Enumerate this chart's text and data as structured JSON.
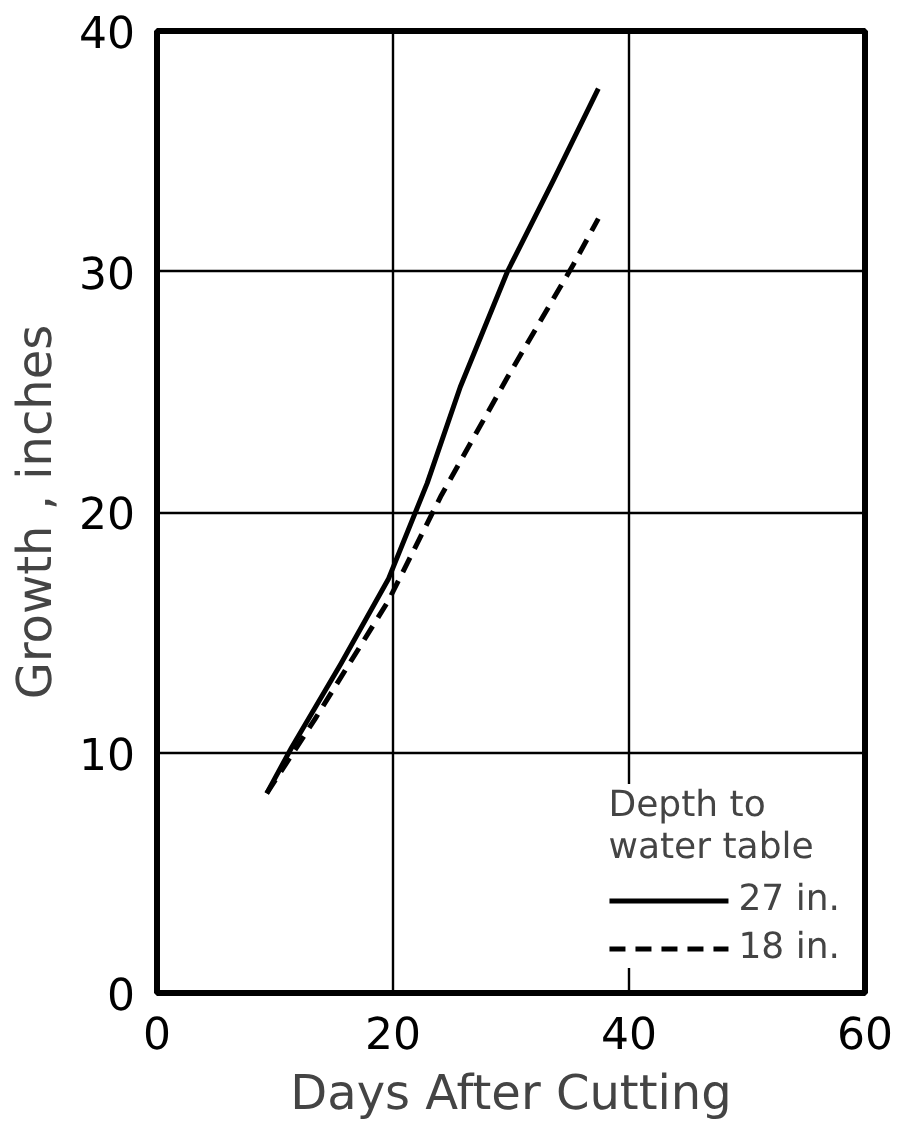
{
  "chart_data": {
    "type": "line",
    "xlabel": "Days After Cutting",
    "ylabel": "Growth , inches",
    "legend_title": "Depth to\nwater table",
    "xlim": [
      0,
      60
    ],
    "ylim": [
      0,
      40
    ],
    "xticks": [
      0,
      20,
      40,
      60
    ],
    "yticks": [
      0,
      10,
      20,
      30,
      40
    ],
    "grid": true,
    "legend": "bottom right",
    "series": [
      {
        "name": "27 in.",
        "color": "#000000",
        "line_style": "solid",
        "x": [
          9.3,
          11.4,
          15.6,
          19.6,
          22.9,
          25.7,
          29.7,
          33.6,
          37.4
        ],
        "values": [
          8.3,
          10.2,
          13.7,
          17.2,
          21.2,
          25.2,
          30.0,
          33.8,
          37.6
        ]
      },
      {
        "name": "18 in.",
        "color": "#000000",
        "line_style": "dashed",
        "x": [
          9.3,
          13.4,
          19.6,
          24.1,
          29.7,
          35.3,
          37.4
        ],
        "values": [
          8.3,
          11.4,
          16.3,
          20.7,
          25.6,
          30.3,
          32.2
        ]
      }
    ]
  }
}
